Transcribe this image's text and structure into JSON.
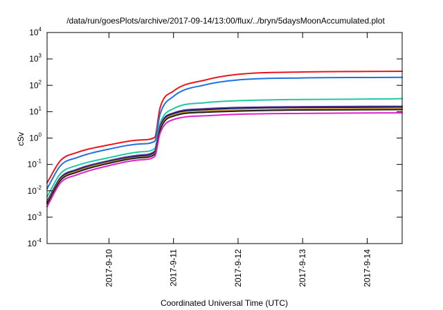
{
  "chart_data": {
    "type": "line",
    "title": "/data/run/goesPlots/archive/2017-09-14/13:00/flux/../bryn/5daysMoonAccumulated.plot",
    "xlabel": "Coordinated Universal Time (UTC)",
    "ylabel": "cSv",
    "yscale": "log",
    "ylim": [
      0.0001,
      10000
    ],
    "xlim": [
      "2017-09-09 01:00",
      "2017-09-14 13:00"
    ],
    "grid": false,
    "legend": "none",
    "x_ticks": [
      "2017-9-10",
      "2017-9-11",
      "2017-9-12",
      "2017-9-13",
      "2017-9-14"
    ],
    "y_ticks": [
      {
        "value": 0.0001,
        "base": "10",
        "exp": "-4"
      },
      {
        "value": 0.001,
        "base": "10",
        "exp": "-3"
      },
      {
        "value": 0.01,
        "base": "10",
        "exp": "-2"
      },
      {
        "value": 0.1,
        "base": "10",
        "exp": "-1"
      },
      {
        "value": 1,
        "base": "10",
        "exp": "0"
      },
      {
        "value": 10,
        "base": "10",
        "exp": "1"
      },
      {
        "value": 100,
        "base": "10",
        "exp": "2"
      },
      {
        "value": 1000,
        "base": "10",
        "exp": "3"
      },
      {
        "value": 10000,
        "base": "10",
        "exp": "4"
      }
    ],
    "x": [
      "2017-09-09 01:00",
      "2017-09-09 06:00",
      "2017-09-09 12:00",
      "2017-09-10 00:00",
      "2017-09-10 12:00",
      "2017-09-10 17:00",
      "2017-09-10 19:00",
      "2017-09-11 00:00",
      "2017-09-11 12:00",
      "2017-09-12 00:00",
      "2017-09-13 00:00",
      "2017-09-14 00:00",
      "2017-09-14 13:00"
    ],
    "series": [
      {
        "color": "#e8141c",
        "values": [
          0.02,
          0.14,
          0.28,
          0.55,
          0.85,
          1.05,
          14,
          60,
          160,
          260,
          320,
          335,
          340
        ]
      },
      {
        "color": "#1f6fe0",
        "values": [
          0.012,
          0.09,
          0.18,
          0.38,
          0.6,
          0.75,
          8,
          38,
          105,
          160,
          190,
          198,
          200
        ]
      },
      {
        "color": "#20c8a0",
        "values": [
          0.006,
          0.045,
          0.09,
          0.18,
          0.3,
          0.4,
          3.5,
          13,
          22,
          26,
          29,
          30,
          31
        ]
      },
      {
        "color": "#7040a0",
        "values": [
          0.004,
          0.032,
          0.065,
          0.14,
          0.23,
          0.32,
          2.8,
          9,
          13,
          14.5,
          15.5,
          16,
          16
        ]
      },
      {
        "color": "#101a60",
        "values": [
          0.0038,
          0.03,
          0.06,
          0.13,
          0.21,
          0.29,
          2.5,
          8.5,
          12,
          13.5,
          14.5,
          14.8,
          15
        ]
      },
      {
        "color": "#c89a30",
        "values": [
          0.0035,
          0.027,
          0.055,
          0.12,
          0.19,
          0.26,
          2.2,
          7.5,
          10.5,
          11.5,
          12.5,
          13,
          13
        ]
      },
      {
        "color": "#202020",
        "values": [
          0.0032,
          0.025,
          0.05,
          0.11,
          0.18,
          0.24,
          2.0,
          6.8,
          9.5,
          10.5,
          11.5,
          11.8,
          12
        ]
      },
      {
        "color": "#e020c8",
        "values": [
          0.0025,
          0.02,
          0.04,
          0.09,
          0.15,
          0.2,
          1.5,
          5,
          7,
          8,
          8.6,
          8.9,
          9
        ]
      }
    ]
  }
}
